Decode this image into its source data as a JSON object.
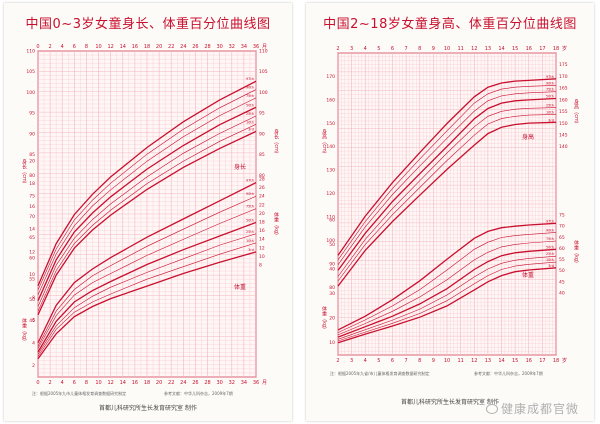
{
  "chart_data": [
    {
      "type": "line",
      "title": "中国0~3岁女童身长、体重百分位曲线图",
      "x_ticks": [
        "0",
        "2",
        "4",
        "6",
        "8",
        "10",
        "12",
        "14",
        "16",
        "18",
        "20",
        "22",
        "24",
        "26",
        "28",
        "30",
        "32",
        "34",
        "36"
      ],
      "x_unit": "月",
      "xlim": [
        0,
        36
      ],
      "height_axis": {
        "label": "身长（cm）",
        "ticks": [
          "45",
          "50",
          "55",
          "60",
          "65",
          "70",
          "75",
          "80",
          "85",
          "90",
          "95",
          "100",
          "105",
          "110"
        ],
        "range": [
          40,
          110
        ]
      },
      "weight_axis": {
        "label": "体重（kg）",
        "ticks": [
          "2",
          "4",
          "6",
          "8",
          "10",
          "12",
          "14",
          "16",
          "18",
          "20"
        ],
        "range": [
          1,
          20
        ]
      },
      "right_height_ticks": [
        "80",
        "85",
        "90",
        "95",
        "100",
        "105",
        "110"
      ],
      "right_weight_ticks": [
        "8",
        "10",
        "12",
        "14",
        "16",
        "18",
        "20",
        "22",
        "24",
        "26",
        "28"
      ],
      "series_labels": {
        "height": "身长",
        "weight": "体重"
      },
      "percentiles": [
        "3rd",
        "10th",
        "25th",
        "50th",
        "75th",
        "90th",
        "97th"
      ],
      "x": [
        0,
        3,
        6,
        9,
        12,
        18,
        24,
        30,
        36
      ],
      "height_series": [
        {
          "name": "3rd",
          "values": [
            46.3,
            55.9,
            62.4,
            66.8,
            70.4,
            76.6,
            81.9,
            86.5,
            90.6
          ]
        },
        {
          "name": "10th",
          "values": [
            47.2,
            57.0,
            63.5,
            67.9,
            71.6,
            78.0,
            83.4,
            88.2,
            92.3
          ]
        },
        {
          "name": "25th",
          "values": [
            48.3,
            58.3,
            64.8,
            69.3,
            73.1,
            79.6,
            85.3,
            90.1,
            94.3
          ]
        },
        {
          "name": "50th",
          "values": [
            49.7,
            59.6,
            66.3,
            70.9,
            74.8,
            81.5,
            87.2,
            92.2,
            96.4
          ]
        },
        {
          "name": "75th",
          "values": [
            51.1,
            61.0,
            67.8,
            72.6,
            76.5,
            83.4,
            89.3,
            94.4,
            98.7
          ]
        },
        {
          "name": "90th",
          "values": [
            52.3,
            62.2,
            69.2,
            74.0,
            78.1,
            85.1,
            91.1,
            96.3,
            100.7
          ]
        },
        {
          "name": "97th",
          "values": [
            53.3,
            63.5,
            70.5,
            75.4,
            79.6,
            86.7,
            92.9,
            98.2,
            102.7
          ]
        }
      ],
      "weight_series": [
        {
          "name": "3rd",
          "values": [
            2.6,
            4.8,
            6.3,
            7.2,
            7.9,
            9.0,
            10.1,
            11.1,
            12.0
          ]
        },
        {
          "name": "10th",
          "values": [
            2.8,
            5.2,
            6.7,
            7.6,
            8.3,
            9.6,
            10.7,
            11.8,
            12.8
          ]
        },
        {
          "name": "25th",
          "values": [
            3.0,
            5.5,
            7.1,
            8.1,
            8.9,
            10.2,
            11.4,
            12.6,
            13.6
          ]
        },
        {
          "name": "50th",
          "values": [
            3.2,
            5.9,
            7.6,
            8.6,
            9.4,
            10.9,
            12.2,
            13.4,
            14.6
          ]
        },
        {
          "name": "75th",
          "values": [
            3.5,
            6.4,
            8.2,
            9.3,
            10.1,
            11.7,
            13.1,
            14.5,
            15.8
          ]
        },
        {
          "name": "90th",
          "values": [
            3.7,
            6.8,
            8.7,
            9.9,
            10.8,
            12.5,
            14.0,
            15.5,
            16.9
          ]
        },
        {
          "name": "97th",
          "values": [
            4.0,
            7.3,
            9.3,
            10.5,
            11.5,
            13.3,
            14.9,
            16.5,
            18.1
          ]
        }
      ]
    },
    {
      "type": "line",
      "title": "中国2~18岁女童身高、体重百分位曲线图",
      "x_ticks": [
        "2",
        "3",
        "4",
        "5",
        "6",
        "7",
        "8",
        "9",
        "10",
        "11",
        "12",
        "13",
        "14",
        "15",
        "16",
        "17",
        "18"
      ],
      "x_unit": "岁",
      "xlim": [
        2,
        18
      ],
      "height_axis": {
        "label": "身高（cm）",
        "ticks": [
          "80",
          "90",
          "100",
          "110",
          "120",
          "130",
          "140",
          "150",
          "160",
          "170"
        ],
        "range": [
          75,
          180
        ]
      },
      "weight_axis": {
        "label": "体重（kg）",
        "ticks": [
          "10",
          "20",
          "30",
          "40",
          "50",
          "60"
        ],
        "range": [
          5,
          75
        ]
      },
      "right_height_ticks": [
        "140",
        "145",
        "150",
        "155",
        "160",
        "165",
        "170",
        "175"
      ],
      "right_weight_ticks": [
        "40",
        "45",
        "50",
        "55",
        "60",
        "65",
        "70",
        "75"
      ],
      "series_labels": {
        "height": "身高",
        "weight": "体重"
      },
      "percentiles": [
        "3rd",
        "10th",
        "25th",
        "50th",
        "75th",
        "90th",
        "97th"
      ],
      "x": [
        2,
        4,
        6,
        8,
        10,
        12,
        13,
        14,
        15,
        16,
        18
      ],
      "height_series": [
        {
          "name": "3rd",
          "values": [
            80.5,
            95.8,
            108.1,
            119.3,
            130.3,
            140.7,
            145.6,
            148.3,
            149.5,
            150.1,
            150.4
          ]
        },
        {
          "name": "10th",
          "values": [
            82.7,
            98.3,
            111.0,
            122.6,
            134.1,
            144.9,
            149.7,
            152.0,
            153.0,
            153.5,
            153.8
          ]
        },
        {
          "name": "25th",
          "values": [
            84.6,
            100.5,
            113.6,
            125.5,
            137.3,
            148.5,
            153.0,
            155.1,
            156.0,
            156.4,
            156.7
          ]
        },
        {
          "name": "50th",
          "values": [
            87.2,
            103.1,
            116.6,
            128.5,
            140.1,
            151.9,
            156.3,
            158.6,
            159.6,
            160.0,
            160.6
          ]
        },
        {
          "name": "75th",
          "values": [
            89.6,
            105.8,
            119.6,
            131.8,
            143.6,
            155.2,
            159.6,
            161.7,
            162.6,
            163.0,
            163.5
          ]
        },
        {
          "name": "90th",
          "values": [
            91.7,
            108.1,
            122.2,
            134.8,
            146.8,
            158.6,
            162.6,
            164.6,
            165.4,
            165.8,
            166.2
          ]
        },
        {
          "name": "97th",
          "values": [
            93.6,
            110.4,
            124.7,
            137.5,
            149.9,
            161.3,
            165.4,
            167.2,
            168.0,
            168.3,
            169.0
          ]
        }
      ],
      "weight_series": [
        {
          "name": "3rd",
          "values": [
            10.0,
            13.5,
            16.8,
            20.4,
            25.0,
            31.5,
            34.8,
            37.3,
            38.9,
            39.6,
            40.5
          ]
        },
        {
          "name": "10th",
          "values": [
            10.7,
            14.3,
            17.9,
            21.9,
            27.1,
            34.0,
            37.3,
            39.8,
            41.2,
            41.9,
            42.8
          ]
        },
        {
          "name": "25th",
          "values": [
            11.4,
            15.3,
            19.2,
            23.7,
            29.4,
            36.8,
            40.0,
            42.3,
            43.6,
            44.3,
            45.2
          ]
        },
        {
          "name": "50th",
          "values": [
            12.3,
            16.5,
            20.8,
            25.8,
            32.0,
            39.8,
            43.0,
            45.4,
            46.6,
            47.2,
            48.0
          ]
        },
        {
          "name": "75th",
          "values": [
            13.2,
            17.8,
            22.8,
            28.6,
            35.6,
            43.7,
            46.8,
            49.0,
            50.0,
            50.6,
            51.4
          ]
        },
        {
          "name": "90th",
          "values": [
            14.1,
            19.3,
            25.0,
            31.6,
            39.6,
            48.0,
            50.9,
            52.8,
            53.6,
            54.1,
            54.9
          ]
        },
        {
          "name": "97th",
          "values": [
            15.2,
            20.8,
            27.5,
            35.2,
            44.0,
            52.5,
            55.3,
            56.8,
            57.4,
            57.9,
            58.6
          ]
        }
      ]
    }
  ],
  "notes": {
    "left_source": "注：根据2005年九市儿童体格发育调查数据研究制定",
    "left_ref": "参考文献：中华儿科杂志，2009年7期",
    "right_source": "注：根据2005年九省/市儿童体格发育调查数据研究制定",
    "right_ref": "参考文献：中华儿科杂志，2009年7期"
  },
  "footers": {
    "left": "首都儿科研究所生长发育研究室  制作",
    "right": "首都儿科研究所生长发育研究室  制作"
  },
  "watermark": "健康成都官微",
  "colors": {
    "line": "#c8102e",
    "grid": "#f2b8bf",
    "title": "#c8102e"
  }
}
